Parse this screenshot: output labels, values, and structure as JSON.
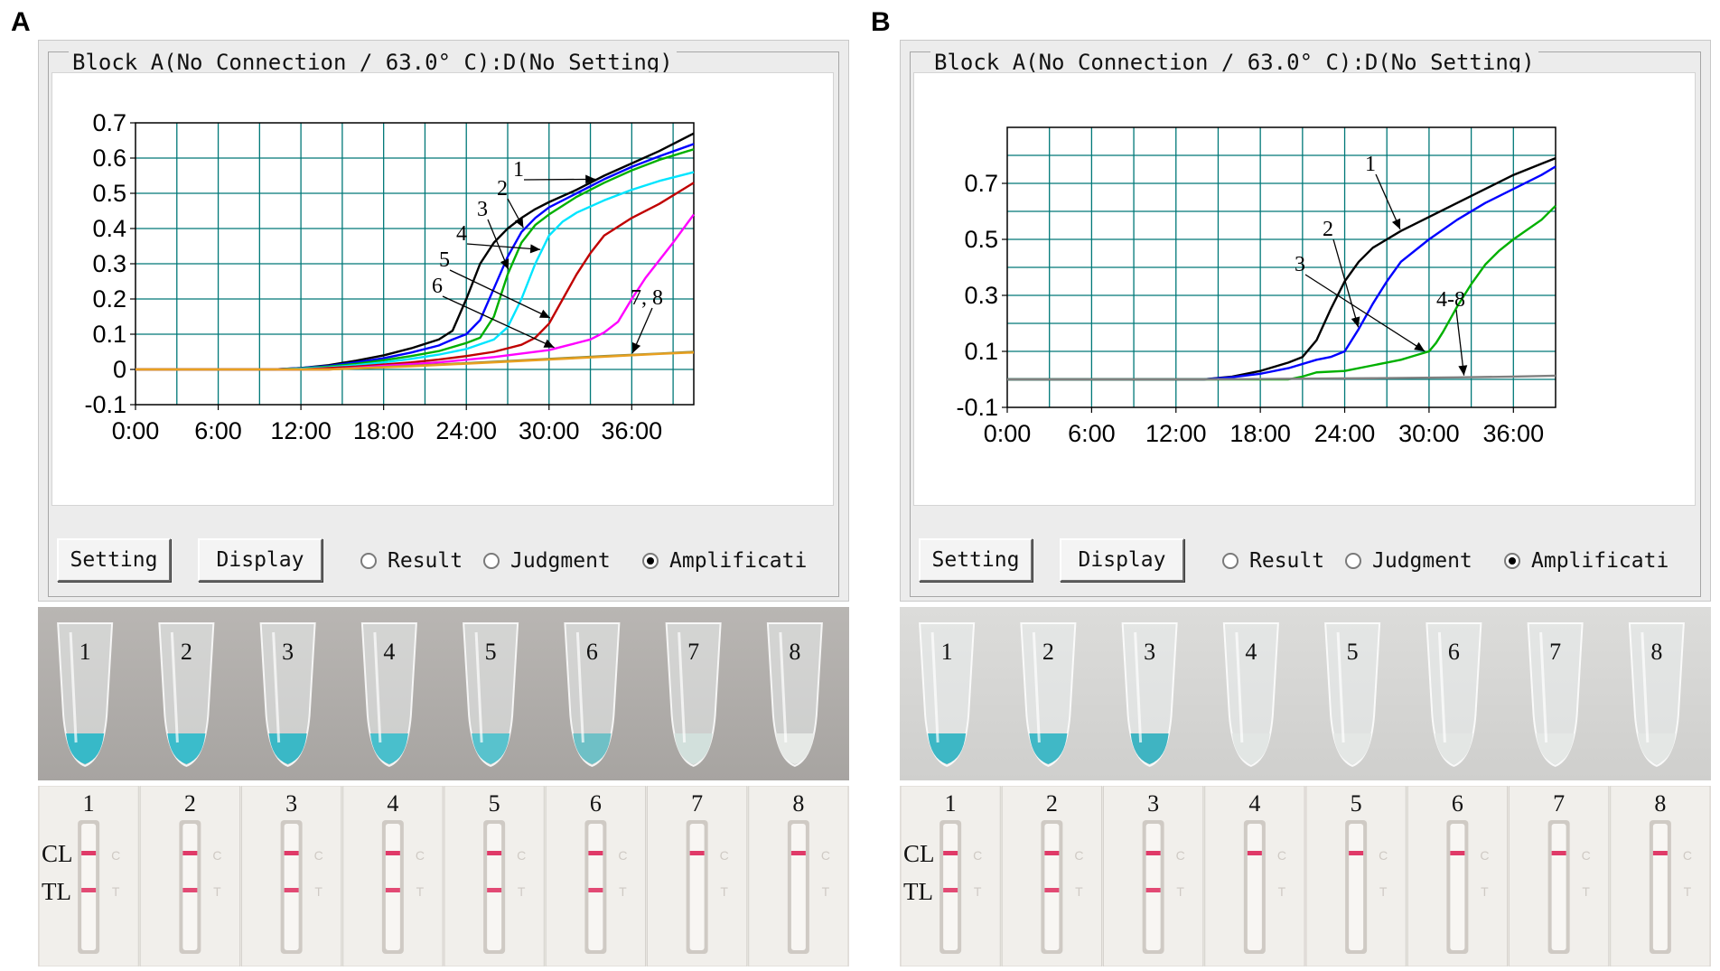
{
  "figure": {
    "panels": [
      {
        "letter": "A",
        "window_title": "Block A(No Connection / 63.0° C):D(No Setting)",
        "buttons": {
          "setting": "Setting",
          "display": "Display"
        },
        "radios": {
          "result": "Result",
          "judgment": "Judgment",
          "amplification": "Amplificati",
          "selected": "amplification"
        },
        "curve_labels": [
          "1",
          "2",
          "3",
          "4",
          "5",
          "6",
          "7, 8"
        ],
        "tube_numbers": [
          "1",
          "2",
          "3",
          "4",
          "5",
          "6",
          "7",
          "8"
        ],
        "tube_colors": [
          "#37b9c8",
          "#3bbccb",
          "#3ab8c6",
          "#49bfcc",
          "#58c2cd",
          "#6ec0c6",
          "#d2e0dc",
          "#e6e9e6"
        ],
        "strip_numbers": [
          "1",
          "2",
          "3",
          "4",
          "5",
          "6",
          "7",
          "8"
        ],
        "strip_line_labels": [
          "CL",
          "TL"
        ],
        "test_line_present": [
          true,
          true,
          true,
          true,
          true,
          true,
          false,
          false
        ]
      },
      {
        "letter": "B",
        "window_title": "Block A(No Connection / 63.0° C):D(No Setting)",
        "buttons": {
          "setting": "Setting",
          "display": "Display"
        },
        "radios": {
          "result": "Result",
          "judgment": "Judgment",
          "amplification": "Amplificati",
          "selected": "amplification"
        },
        "curve_labels": [
          "1",
          "2",
          "3",
          "4-8"
        ],
        "tube_numbers": [
          "1",
          "2",
          "3",
          "4",
          "5",
          "6",
          "7",
          "8"
        ],
        "tube_colors": [
          "#3db7c5",
          "#40b8c6",
          "#3fb4c2",
          "#e2e6e4",
          "#e4e7e5",
          "#e3e6e4",
          "#e5e8e6",
          "#e4e7e5"
        ],
        "strip_numbers": [
          "1",
          "2",
          "3",
          "4",
          "5",
          "6",
          "7",
          "8"
        ],
        "strip_line_labels": [
          "CL",
          "TL"
        ],
        "test_line_present": [
          true,
          true,
          true,
          false,
          false,
          false,
          false,
          false
        ]
      }
    ]
  },
  "chart_data": [
    {
      "type": "line",
      "panel": "A",
      "title": "Block A(No Connection / 63.0° C):D(No Setting)",
      "xlabel": "",
      "ylabel": "",
      "x_unit": "minutes",
      "xlim": [
        0,
        40.5
      ],
      "ylim": [
        -0.1,
        0.7
      ],
      "xtick_labels": [
        "0:00",
        "6:00",
        "12:00",
        "18:00",
        "24:00",
        "30:00",
        "36:00"
      ],
      "xtick_values": [
        0,
        6,
        12,
        18,
        24,
        30,
        36
      ],
      "ytick_labels": [
        "-0.1",
        "0",
        "0.1",
        "0.2",
        "0.3",
        "0.4",
        "0.5",
        "0.6",
        "0.7"
      ],
      "ytick_values": [
        -0.1,
        0,
        0.1,
        0.2,
        0.3,
        0.4,
        0.5,
        0.6,
        0.7
      ],
      "grid": true,
      "series": [
        {
          "name": "1",
          "color": "#000000",
          "x": [
            0,
            10,
            12,
            14,
            16,
            18,
            20,
            22,
            23,
            24,
            25,
            26,
            27,
            28,
            29,
            30,
            32,
            34,
            36,
            38,
            40.5
          ],
          "y": [
            0,
            0,
            0.004,
            0.012,
            0.025,
            0.04,
            0.06,
            0.085,
            0.11,
            0.2,
            0.3,
            0.36,
            0.4,
            0.43,
            0.455,
            0.475,
            0.51,
            0.55,
            0.585,
            0.62,
            0.67
          ]
        },
        {
          "name": "2",
          "color": "#0000ff",
          "x": [
            0,
            10,
            12,
            14,
            16,
            18,
            20,
            22,
            23,
            24,
            25,
            26,
            27,
            28,
            29,
            30,
            32,
            34,
            36,
            38,
            40.5
          ],
          "y": [
            0,
            0,
            0.004,
            0.01,
            0.02,
            0.032,
            0.048,
            0.068,
            0.085,
            0.1,
            0.14,
            0.23,
            0.32,
            0.39,
            0.43,
            0.46,
            0.5,
            0.54,
            0.575,
            0.605,
            0.64
          ]
        },
        {
          "name": "3",
          "color": "#00b000",
          "x": [
            0,
            10,
            12,
            14,
            16,
            18,
            20,
            22,
            24,
            25,
            26,
            27,
            28,
            29,
            30,
            32,
            34,
            36,
            38,
            40.5
          ],
          "y": [
            0,
            0,
            0.003,
            0.008,
            0.016,
            0.026,
            0.038,
            0.052,
            0.075,
            0.09,
            0.15,
            0.27,
            0.36,
            0.41,
            0.44,
            0.49,
            0.53,
            0.565,
            0.595,
            0.625
          ]
        },
        {
          "name": "4",
          "color": "#00e5ff",
          "x": [
            0,
            10,
            12,
            14,
            16,
            18,
            20,
            22,
            24,
            26,
            27,
            28,
            29,
            30,
            31,
            32,
            34,
            36,
            38,
            40.5
          ],
          "y": [
            0,
            0,
            0.002,
            0.006,
            0.012,
            0.02,
            0.03,
            0.042,
            0.058,
            0.085,
            0.12,
            0.2,
            0.3,
            0.38,
            0.42,
            0.445,
            0.48,
            0.51,
            0.535,
            0.56
          ]
        },
        {
          "name": "5",
          "color": "#c00000",
          "x": [
            0,
            12,
            14,
            16,
            18,
            20,
            22,
            24,
            26,
            28,
            29,
            30,
            31,
            32,
            33,
            34,
            36,
            38,
            40.5
          ],
          "y": [
            0,
            0,
            0.004,
            0.008,
            0.014,
            0.02,
            0.028,
            0.038,
            0.05,
            0.07,
            0.09,
            0.13,
            0.2,
            0.27,
            0.33,
            0.38,
            0.43,
            0.47,
            0.53
          ]
        },
        {
          "name": "6",
          "color": "#ff00ff",
          "x": [
            0,
            14,
            18,
            22,
            26,
            30,
            32,
            33,
            34,
            35,
            36,
            37,
            38,
            39,
            40.5
          ],
          "y": [
            0,
            0,
            0.01,
            0.02,
            0.035,
            0.055,
            0.075,
            0.085,
            0.105,
            0.135,
            0.2,
            0.26,
            0.31,
            0.36,
            0.44
          ]
        },
        {
          "name": "7",
          "color": "#8a8a40",
          "x": [
            0,
            14,
            20,
            26,
            30,
            34,
            38,
            40.5
          ],
          "y": [
            0,
            0,
            0.01,
            0.022,
            0.03,
            0.038,
            0.045,
            0.05
          ]
        },
        {
          "name": "8",
          "color": "#e8a020",
          "x": [
            0,
            14,
            20,
            26,
            30,
            34,
            38,
            40.5
          ],
          "y": [
            0,
            0,
            0.009,
            0.02,
            0.028,
            0.036,
            0.044,
            0.048
          ]
        }
      ]
    },
    {
      "type": "line",
      "panel": "B",
      "title": "Block A(No Connection / 63.0° C):D(No Setting)",
      "xlabel": "",
      "ylabel": "",
      "x_unit": "minutes",
      "xlim": [
        0,
        39
      ],
      "ylim": [
        -0.1,
        0.9
      ],
      "xtick_labels": [
        "0:00",
        "6:00",
        "12:00",
        "18:00",
        "24:00",
        "30:00",
        "36:00"
      ],
      "xtick_values": [
        0,
        6,
        12,
        18,
        24,
        30,
        36
      ],
      "ytick_labels": [
        "-0.1",
        "0.1",
        "0.3",
        "0.5",
        "0.7"
      ],
      "ytick_values": [
        -0.1,
        0.1,
        0.3,
        0.5,
        0.7
      ],
      "grid": true,
      "series": [
        {
          "name": "1",
          "color": "#000000",
          "x": [
            0,
            14,
            16,
            18,
            20,
            21,
            22,
            23,
            24,
            25,
            26,
            27,
            28,
            30,
            32,
            34,
            36,
            38,
            39
          ],
          "y": [
            0,
            0,
            0.01,
            0.03,
            0.06,
            0.08,
            0.14,
            0.25,
            0.35,
            0.42,
            0.47,
            0.5,
            0.53,
            0.58,
            0.63,
            0.68,
            0.73,
            0.77,
            0.79
          ]
        },
        {
          "name": "2",
          "color": "#0000ff",
          "x": [
            0,
            14,
            16,
            18,
            20,
            22,
            23,
            24,
            25,
            26,
            27,
            28,
            30,
            32,
            34,
            36,
            38,
            39
          ],
          "y": [
            0,
            0,
            0.008,
            0.02,
            0.04,
            0.07,
            0.08,
            0.1,
            0.18,
            0.27,
            0.35,
            0.42,
            0.5,
            0.57,
            0.63,
            0.68,
            0.73,
            0.76
          ]
        },
        {
          "name": "3",
          "color": "#00b000",
          "x": [
            0,
            20,
            21,
            22,
            24,
            26,
            28,
            29,
            30,
            30.5,
            31,
            32,
            33,
            34,
            35,
            36,
            38,
            39
          ],
          "y": [
            0,
            0,
            0.01,
            0.025,
            0.03,
            0.05,
            0.07,
            0.085,
            0.1,
            0.13,
            0.17,
            0.26,
            0.34,
            0.41,
            0.46,
            0.5,
            0.57,
            0.62
          ]
        },
        {
          "name": "4-8",
          "color": "#808080",
          "x": [
            0,
            14,
            20,
            26,
            32,
            36,
            39
          ],
          "y": [
            0,
            0,
            0.002,
            0.004,
            0.007,
            0.01,
            0.013
          ]
        }
      ]
    }
  ]
}
